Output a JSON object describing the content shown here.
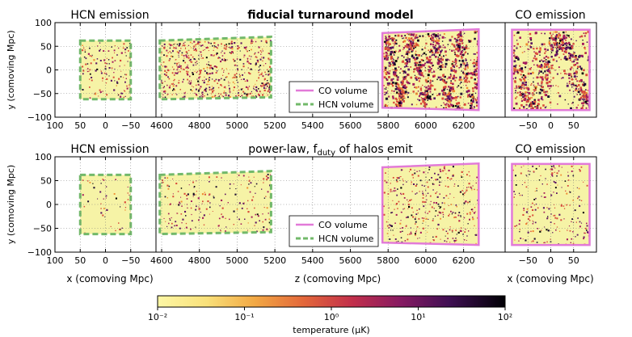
{
  "chart_data": {
    "type": "heatmap",
    "rows": [
      {
        "row_title": "fiducial turnaround model",
        "title_weight": "bold",
        "density": 1.0,
        "left_title": "HCN emission",
        "right_title": "CO emission",
        "legend": [
          "CO volume",
          "HCN volume"
        ]
      },
      {
        "row_title": "power-law, f",
        "row_title_sub": "duty",
        "row_title_rest": " of halos emit",
        "title_weight": "normal",
        "density": 0.32,
        "left_title": "HCN emission",
        "right_title": "CO emission",
        "legend": [
          "CO volume",
          "HCN volume"
        ]
      }
    ],
    "panels": {
      "left": {
        "xlim": [
          100,
          -100
        ],
        "xticks": [
          100,
          50,
          0,
          -50
        ],
        "xtick_labels": [
          "100",
          "50",
          "0",
          "−50"
        ],
        "xlabel": "x (comoving Mpc)"
      },
      "middle": {
        "xlim": [
          4570,
          6420
        ],
        "xticks": [
          4600,
          4800,
          5000,
          5200,
          5400,
          5600,
          5800,
          6000,
          6200
        ],
        "xtick_labels": [
          "4600",
          "4800",
          "5000",
          "5200",
          "5400",
          "5600",
          "5800",
          "6000",
          "6200"
        ],
        "xlabel": "z (comoving Mpc)"
      },
      "right": {
        "xlim": [
          -100,
          100
        ],
        "xticks": [
          -50,
          0,
          50
        ],
        "xtick_labels": [
          "−50",
          "0",
          "50"
        ],
        "xlabel": "x (comoving Mpc)"
      }
    },
    "ylim": [
      -100,
      100
    ],
    "yticks": [
      100,
      50,
      0,
      -50,
      -100
    ],
    "ytick_labels": [
      "100",
      "50",
      "0",
      "−50",
      "−100"
    ],
    "ylabel": "y (comoving Mpc)",
    "volumes": {
      "hcn_left": {
        "x": [
          50,
          -50
        ],
        "y": [
          -62,
          62
        ]
      },
      "co_right": {
        "x": [
          -85,
          85
        ],
        "y": [
          -85,
          85
        ]
      },
      "hcn_mid": {
        "z0": 4590,
        "z1": 5180,
        "y_bottom": [
          -62,
          -58
        ],
        "y_top": [
          62,
          70
        ]
      },
      "co_mid": {
        "z0": 5770,
        "z1": 6280,
        "y_bottom": [
          -80,
          -85
        ],
        "y_top": [
          78,
          86
        ]
      }
    },
    "colorbar": {
      "label": "temperature (μK)",
      "ticks": [
        "10⁻²",
        "10⁻¹",
        "10⁰",
        "10¹",
        "10²"
      ],
      "scale": "log",
      "range": [
        0.01,
        100
      ]
    },
    "colors": {
      "background_map": "#f6f3a6",
      "co_volume": "#e27ad8",
      "hcn_volume": "#72b96a",
      "cmap": [
        "#fdf7a5",
        "#f7ca5a",
        "#ef8a30",
        "#d84a3a",
        "#a3195c",
        "#5c1464",
        "#1b0a32",
        "#000004"
      ]
    }
  }
}
